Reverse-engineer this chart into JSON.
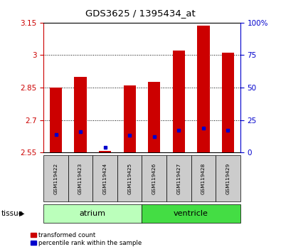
{
  "title": "GDS3625 / 1395434_at",
  "samples": [
    "GSM119422",
    "GSM119423",
    "GSM119424",
    "GSM119425",
    "GSM119426",
    "GSM119427",
    "GSM119428",
    "GSM119429"
  ],
  "red_values": [
    2.85,
    2.9,
    2.557,
    2.86,
    2.875,
    3.02,
    3.135,
    3.01
  ],
  "blue_values": [
    14,
    16,
    4,
    13,
    12,
    17,
    19,
    17
  ],
  "ylim_left": [
    2.55,
    3.15
  ],
  "ylim_right": [
    0,
    100
  ],
  "yticks_left": [
    2.55,
    2.7,
    2.85,
    3.0,
    3.15
  ],
  "yticks_right": [
    0,
    25,
    50,
    75,
    100
  ],
  "ytick_labels_left": [
    "2.55",
    "2.7",
    "2.85",
    "3",
    "3.15"
  ],
  "ytick_labels_right": [
    "0",
    "25",
    "50",
    "75",
    "100%"
  ],
  "red_color": "#cc0000",
  "blue_color": "#0000cc",
  "bar_width": 0.5,
  "base_value": 2.55,
  "tissue_groups": [
    {
      "label": "atrium",
      "start": 0,
      "end": 3,
      "color": "#bbffbb"
    },
    {
      "label": "ventricle",
      "start": 4,
      "end": 7,
      "color": "#44dd44"
    }
  ],
  "tissue_label": "tissue",
  "legend_items": [
    {
      "label": "transformed count",
      "color": "#cc0000"
    },
    {
      "label": "percentile rank within the sample",
      "color": "#0000cc"
    }
  ],
  "grid_color": "black",
  "plot_bg": "#ffffff",
  "sample_bg": "#cccccc"
}
